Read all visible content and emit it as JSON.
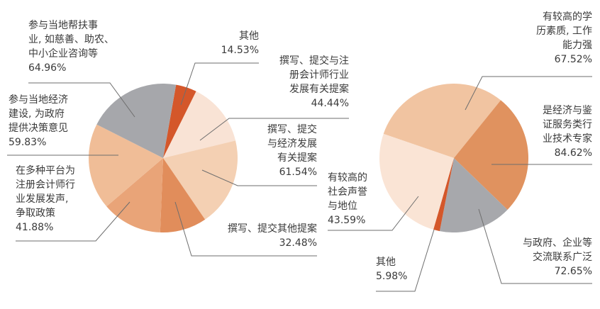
{
  "chart_data": [
    {
      "type": "pie",
      "title": "",
      "slices": [
        {
          "label": [
            "其他"
          ],
          "value": 14.53,
          "value_text": "14.53%",
          "color": "#d4572a"
        },
        {
          "label": [
            "撰写、提交与注",
            "册会计师行业",
            "发展有关提案"
          ],
          "value": 44.44,
          "value_text": "44.44%",
          "color": "#f9e3d5"
        },
        {
          "label": [
            "撰写、提交",
            "与经济发展",
            "有关提案"
          ],
          "value": 61.54,
          "value_text": "61.54%",
          "color": "#f4d0b3"
        },
        {
          "label": [
            "撰写、提交其他提案"
          ],
          "value": 32.48,
          "value_text": "32.48%",
          "color": "#e18d5b"
        },
        {
          "label": [
            "在多种平台为",
            "注册会计师行",
            "业发展发声,",
            "争取政策"
          ],
          "value": 41.88,
          "value_text": "41.88%",
          "color": "#e9a478"
        },
        {
          "label": [
            "参与当地经济",
            "建设, 为政府",
            "提供决策意见"
          ],
          "value": 59.83,
          "value_text": "59.83%",
          "color": "#f0bd97"
        },
        {
          "label": [
            "参与当地帮扶事",
            "业, 如慈善、助农、",
            "中小企业咨询等"
          ],
          "value": 64.96,
          "value_text": "64.96%",
          "color": "#a6a7ab"
        }
      ]
    },
    {
      "type": "pie",
      "title": "",
      "slices": [
        {
          "label": [
            "有较高的学",
            "历素质, 工作",
            "能力强"
          ],
          "value": 67.52,
          "value_text": "67.52%",
          "color": "#f1c4a1"
        },
        {
          "label": [
            "是经济与鉴",
            "证服务类行",
            "业技术专家"
          ],
          "value": 84.62,
          "value_text": "84.62%",
          "color": "#e0925f"
        },
        {
          "label": [
            "与政府、企业等",
            "交流联系广泛"
          ],
          "value": 72.65,
          "value_text": "72.65%",
          "color": "#a7a8ac"
        },
        {
          "label": [
            "其他"
          ],
          "value": 5.98,
          "value_text": "5.98%",
          "color": "#d4572a"
        },
        {
          "label": [
            "有较高的",
            "社会声誉",
            "与地位"
          ],
          "value": 43.59,
          "value_text": "43.59%",
          "color": "#fae4d5"
        }
      ]
    }
  ]
}
